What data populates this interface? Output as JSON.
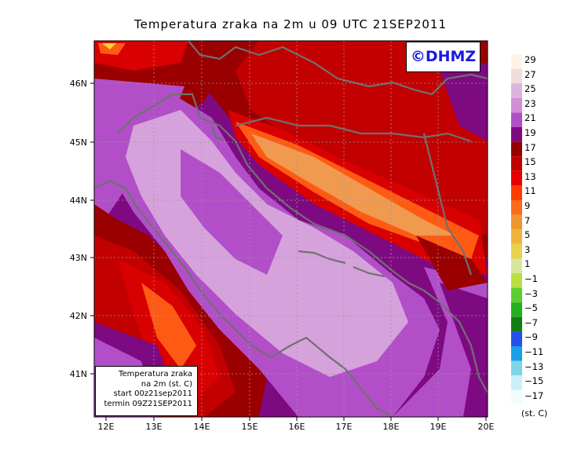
{
  "title": "Temperatura zraka na 2m u 09 UTC 21SEP2011",
  "logo": "©DHMZ",
  "info_box": {
    "line1": "Temperatura zraka",
    "line2": "na 2m (st. C)",
    "line3": "start 00z21sep2011",
    "line4": "termin 09Z21SEP2011"
  },
  "lon_ticks": [
    "12E",
    "13E",
    "14E",
    "15E",
    "16E",
    "17E",
    "18E",
    "19E",
    "20E"
  ],
  "lat_ticks": [
    "46N",
    "45N",
    "44N",
    "43N",
    "42N",
    "41N"
  ],
  "colorbar": {
    "labels": [
      "29",
      "27",
      "25",
      "23",
      "21",
      "19",
      "17",
      "15",
      "13",
      "11",
      "9",
      "7",
      "5",
      "3",
      "1",
      "−1",
      "−3",
      "−5",
      "−7",
      "−9",
      "−11",
      "−13",
      "−15",
      "−17"
    ],
    "colors": [
      "#fff3e6",
      "#eedddd",
      "#dcb5de",
      "#d08fd6",
      "#b24fc8",
      "#7e0a82",
      "#960000",
      "#c20000",
      "#e80000",
      "#ff3c00",
      "#ff6a1a",
      "#f0962e",
      "#eeb43c",
      "#e6d24c",
      "#d8e6a0",
      "#b8e040",
      "#5ccf2f",
      "#22b01e",
      "#127d12",
      "#2451e8",
      "#1aa0ea",
      "#7fd4e6",
      "#ccf0f5",
      "#f2fcfd"
    ],
    "unit": "(st. C)"
  },
  "map": {
    "region": "Adriatic / Croatia",
    "lon_range": [
      11.8,
      20.0
    ],
    "lat_range": [
      40.2,
      46.8
    ],
    "colors": {
      "hot_light": "#d6a2dc",
      "hot_purple": "#b24fc8",
      "dark_purple": "#7e0a82",
      "dark_red": "#9b0000",
      "red": "#d80000",
      "orange": "#ff5a14",
      "light_orange": "#f09a50",
      "border": "#707070"
    }
  }
}
